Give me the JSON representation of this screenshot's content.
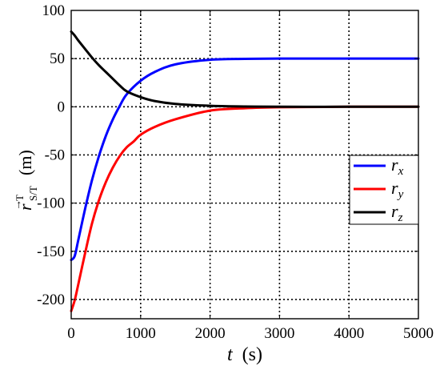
{
  "chart_data": {
    "type": "line",
    "xlabel_var": "t",
    "xlabel_unit": "(s)",
    "ylabel_main": "r",
    "ylabel_sup": "T",
    "ylabel_sub": "S/T",
    "ylabel_unit": "(m)",
    "xlim": [
      0,
      5000
    ],
    "ylim": [
      -220,
      100
    ],
    "xticks": [
      0,
      1000,
      2000,
      3000,
      4000,
      5000
    ],
    "yticks": [
      -200,
      -150,
      -100,
      -50,
      0,
      50,
      100
    ],
    "grid": true,
    "grid_style": "dotted",
    "legend_position": "right",
    "series": [
      {
        "name": "r_x",
        "label_main": "r",
        "label_sub": "x",
        "color": "#0000ff",
        "x": [
          0,
          50,
          100,
          200,
          300,
          400,
          500,
          600,
          700,
          800,
          1000,
          1200,
          1500,
          2000,
          2500,
          3000,
          4000,
          5000
        ],
        "y": [
          -159,
          -155,
          -139,
          -106,
          -76,
          -51,
          -30,
          -13,
          1,
          13,
          27,
          36,
          44,
          48.8,
          49.7,
          50,
          50,
          50
        ]
      },
      {
        "name": "r_y",
        "label_main": "r",
        "label_sub": "y",
        "color": "#ff0000",
        "x": [
          0,
          50,
          100,
          200,
          300,
          400,
          500,
          600,
          700,
          800,
          900,
          1000,
          1200,
          1500,
          2000,
          2500,
          3000,
          4000,
          5000
        ],
        "y": [
          -212,
          -201,
          -185,
          -152,
          -121,
          -97,
          -78,
          -63,
          -51,
          -42,
          -36,
          -29,
          -21,
          -13,
          -4,
          -1.5,
          -0.5,
          0,
          0
        ]
      },
      {
        "name": "r_z",
        "label_main": "r",
        "label_sub": "z",
        "color": "#000000",
        "x": [
          0,
          50,
          100,
          200,
          300,
          400,
          500,
          600,
          700,
          800,
          1000,
          1200,
          1500,
          2000,
          2500,
          3000,
          4000,
          5000
        ],
        "y": [
          78,
          74,
          69,
          60,
          51,
          43,
          36,
          29,
          22,
          16,
          10,
          6,
          3,
          1,
          0.3,
          0,
          0,
          0
        ]
      }
    ]
  }
}
